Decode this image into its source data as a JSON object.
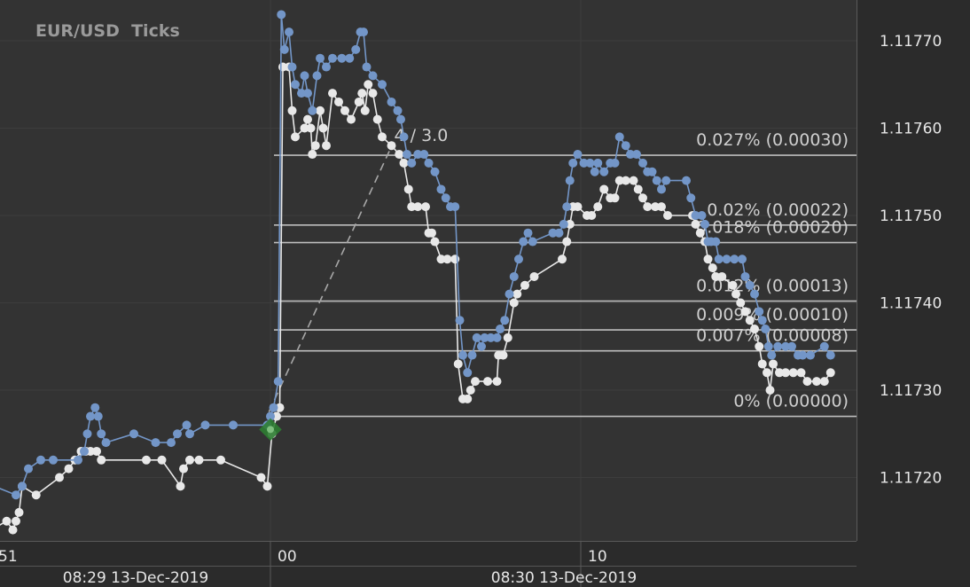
{
  "chart_data": {
    "type": "line",
    "title": "EUR/USD  Ticks",
    "y_ticks": [
      {
        "value": 1.1177,
        "label": "1.11770"
      },
      {
        "value": 1.1176,
        "label": "1.11760"
      },
      {
        "value": 1.1175,
        "label": "1.11750"
      },
      {
        "value": 1.1174,
        "label": "1.11740"
      },
      {
        "value": 1.1173,
        "label": "1.11730"
      },
      {
        "value": 1.1172,
        "label": "1.11720"
      }
    ],
    "x_ticks": [
      {
        "t": 51,
        "label": "51"
      },
      {
        "t": 60,
        "label": "00"
      },
      {
        "t": 70,
        "label": "10"
      }
    ],
    "date_labels": [
      {
        "label": "08:29 13-Dec-2019"
      },
      {
        "label": "08:30 13-Dec-2019"
      }
    ],
    "fib_levels": [
      {
        "value": 1.117569,
        "label": "0.027% (0.00030)"
      },
      {
        "value": 1.117489,
        "label": "0.02% (0.00022)"
      },
      {
        "value": 1.117469,
        "label": "0.018% (0.00020)"
      },
      {
        "value": 1.117402,
        "label": "0.012% (0.00013)"
      },
      {
        "value": 1.117369,
        "label": "0.009% (0.00010)"
      },
      {
        "value": 1.117345,
        "label": "0.007% (0.00008)"
      },
      {
        "value": 1.11727,
        "label": "0% (0.00000)"
      }
    ],
    "trend_label": "4 / 3.0",
    "trend_line": {
      "start": [
        59.95,
        1.117275
      ],
      "end": [
        63.9,
        1.117579
      ]
    },
    "marker": {
      "t": 60.0,
      "value": 1.117255
    },
    "colors": {
      "ask": "#7396c8",
      "bid": "#e8e8e8",
      "background": "#333333",
      "fib": "#bebebe",
      "marker": "#2e7d32"
    },
    "series": [
      {
        "points": [
          [
            50.5,
            1.11719
          ],
          [
            51.1,
            1.11719
          ],
          [
            51.8,
            1.11718
          ],
          [
            52.0,
            1.11719
          ],
          [
            52.2,
            1.11721
          ],
          [
            52.6,
            1.11722
          ],
          [
            53.0,
            1.11722
          ],
          [
            53.8,
            1.11722
          ],
          [
            54.0,
            1.11723
          ],
          [
            54.1,
            1.11725
          ],
          [
            54.2,
            1.11727
          ],
          [
            54.35,
            1.11728
          ],
          [
            54.45,
            1.11727
          ],
          [
            54.55,
            1.11725
          ],
          [
            54.7,
            1.11724
          ],
          [
            55.6,
            1.11725
          ],
          [
            56.3,
            1.11724
          ],
          [
            56.8,
            1.11724
          ],
          [
            57.0,
            1.11725
          ],
          [
            57.3,
            1.11726
          ],
          [
            57.4,
            1.11725
          ],
          [
            57.9,
            1.11726
          ],
          [
            58.8,
            1.11726
          ],
          [
            59.9,
            1.11726
          ],
          [
            60.0,
            1.11727
          ],
          [
            60.1,
            1.11728
          ],
          [
            60.25,
            1.11731
          ],
          [
            60.35,
            1.11773
          ],
          [
            60.45,
            1.11769
          ],
          [
            60.6,
            1.11771
          ],
          [
            60.7,
            1.11767
          ],
          [
            60.8,
            1.11765
          ],
          [
            61.0,
            1.11764
          ],
          [
            61.1,
            1.11766
          ],
          [
            61.2,
            1.11764
          ],
          [
            61.35,
            1.11762
          ],
          [
            61.5,
            1.11766
          ],
          [
            61.6,
            1.11768
          ],
          [
            61.8,
            1.11767
          ],
          [
            62.0,
            1.11768
          ],
          [
            62.3,
            1.11768
          ],
          [
            62.55,
            1.11768
          ],
          [
            62.75,
            1.11769
          ],
          [
            62.9,
            1.11771
          ],
          [
            63.0,
            1.11771
          ],
          [
            63.1,
            1.11767
          ],
          [
            63.3,
            1.11766
          ],
          [
            63.6,
            1.11765
          ],
          [
            63.9,
            1.11763
          ],
          [
            64.1,
            1.11762
          ],
          [
            64.2,
            1.11761
          ],
          [
            64.3,
            1.11759
          ],
          [
            64.4,
            1.11757
          ],
          [
            64.55,
            1.11756
          ],
          [
            64.75,
            1.11757
          ],
          [
            64.95,
            1.11757
          ],
          [
            65.1,
            1.11756
          ],
          [
            65.3,
            1.11755
          ],
          [
            65.5,
            1.11753
          ],
          [
            65.65,
            1.11752
          ],
          [
            65.8,
            1.11751
          ],
          [
            65.95,
            1.11751
          ],
          [
            66.1,
            1.11738
          ],
          [
            66.2,
            1.11734
          ],
          [
            66.35,
            1.11732
          ],
          [
            66.5,
            1.11734
          ],
          [
            66.65,
            1.11736
          ],
          [
            66.8,
            1.11735
          ],
          [
            66.9,
            1.11736
          ],
          [
            67.1,
            1.11736
          ],
          [
            67.3,
            1.11736
          ],
          [
            67.4,
            1.11737
          ],
          [
            67.55,
            1.11738
          ],
          [
            67.7,
            1.11741
          ],
          [
            67.85,
            1.11743
          ],
          [
            68.0,
            1.11745
          ],
          [
            68.15,
            1.11747
          ],
          [
            68.3,
            1.11748
          ],
          [
            68.45,
            1.11747
          ],
          [
            69.1,
            1.11748
          ],
          [
            69.3,
            1.11748
          ],
          [
            69.45,
            1.11749
          ],
          [
            69.55,
            1.11751
          ],
          [
            69.65,
            1.11754
          ],
          [
            69.75,
            1.11756
          ],
          [
            69.9,
            1.11757
          ],
          [
            70.1,
            1.11756
          ],
          [
            70.3,
            1.11756
          ],
          [
            70.45,
            1.11755
          ],
          [
            70.55,
            1.11756
          ],
          [
            70.75,
            1.11755
          ],
          [
            70.95,
            1.11756
          ],
          [
            71.1,
            1.11756
          ],
          [
            71.25,
            1.11759
          ],
          [
            71.45,
            1.11758
          ],
          [
            71.6,
            1.11757
          ],
          [
            71.8,
            1.11757
          ],
          [
            72.0,
            1.11756
          ],
          [
            72.15,
            1.11755
          ],
          [
            72.3,
            1.11755
          ],
          [
            72.45,
            1.11754
          ],
          [
            72.6,
            1.11753
          ],
          [
            72.75,
            1.11754
          ],
          [
            73.4,
            1.11754
          ],
          [
            73.55,
            1.11752
          ],
          [
            73.7,
            1.1175
          ],
          [
            73.9,
            1.1175
          ],
          [
            74.0,
            1.11749
          ],
          [
            74.1,
            1.11747
          ],
          [
            74.2,
            1.11747
          ],
          [
            74.35,
            1.11747
          ],
          [
            74.45,
            1.11745
          ],
          [
            74.7,
            1.11745
          ],
          [
            74.95,
            1.11745
          ],
          [
            75.2,
            1.11745
          ],
          [
            75.3,
            1.11743
          ],
          [
            75.45,
            1.11742
          ],
          [
            75.6,
            1.11741
          ],
          [
            75.75,
            1.11739
          ],
          [
            75.85,
            1.11738
          ],
          [
            75.95,
            1.11737
          ],
          [
            76.05,
            1.11735
          ],
          [
            76.15,
            1.11734
          ],
          [
            76.35,
            1.11735
          ],
          [
            76.6,
            1.11735
          ],
          [
            76.8,
            1.11735
          ],
          [
            77.0,
            1.11734
          ],
          [
            77.15,
            1.11734
          ],
          [
            77.4,
            1.11734
          ],
          [
            77.85,
            1.11735
          ],
          [
            78.05,
            1.11734
          ]
        ]
      },
      {
        "points": [
          [
            50.5,
            1.11715
          ],
          [
            51.0,
            1.11714
          ],
          [
            51.5,
            1.11715
          ],
          [
            51.7,
            1.11714
          ],
          [
            51.8,
            1.11715
          ],
          [
            51.9,
            1.11716
          ],
          [
            52.0,
            1.11719
          ],
          [
            52.45,
            1.11718
          ],
          [
            53.2,
            1.1172
          ],
          [
            53.5,
            1.11721
          ],
          [
            53.7,
            1.11722
          ],
          [
            53.9,
            1.11723
          ],
          [
            54.05,
            1.11723
          ],
          [
            54.2,
            1.11723
          ],
          [
            54.4,
            1.11723
          ],
          [
            54.55,
            1.11722
          ],
          [
            56.0,
            1.11722
          ],
          [
            56.5,
            1.11722
          ],
          [
            57.1,
            1.11719
          ],
          [
            57.2,
            1.11721
          ],
          [
            57.4,
            1.11722
          ],
          [
            57.7,
            1.11722
          ],
          [
            58.4,
            1.11722
          ],
          [
            59.7,
            1.1172
          ],
          [
            59.9,
            1.11719
          ],
          [
            60.05,
            1.11725
          ],
          [
            60.2,
            1.11727
          ],
          [
            60.3,
            1.11728
          ],
          [
            60.4,
            1.11767
          ],
          [
            60.6,
            1.11767
          ],
          [
            60.7,
            1.11762
          ],
          [
            60.8,
            1.11759
          ],
          [
            61.1,
            1.1176
          ],
          [
            61.2,
            1.11761
          ],
          [
            61.3,
            1.1176
          ],
          [
            61.35,
            1.11757
          ],
          [
            61.45,
            1.11758
          ],
          [
            61.6,
            1.11762
          ],
          [
            61.7,
            1.1176
          ],
          [
            61.8,
            1.11758
          ],
          [
            62.0,
            1.11764
          ],
          [
            62.2,
            1.11763
          ],
          [
            62.4,
            1.11762
          ],
          [
            62.6,
            1.11761
          ],
          [
            62.85,
            1.11763
          ],
          [
            62.95,
            1.11764
          ],
          [
            63.05,
            1.11762
          ],
          [
            63.15,
            1.11765
          ],
          [
            63.3,
            1.11764
          ],
          [
            63.45,
            1.11761
          ],
          [
            63.6,
            1.11759
          ],
          [
            63.9,
            1.11758
          ],
          [
            64.15,
            1.11757
          ],
          [
            64.3,
            1.11756
          ],
          [
            64.45,
            1.11753
          ],
          [
            64.55,
            1.11751
          ],
          [
            64.75,
            1.11751
          ],
          [
            65.0,
            1.11751
          ],
          [
            65.1,
            1.11748
          ],
          [
            65.2,
            1.11748
          ],
          [
            65.3,
            1.11747
          ],
          [
            65.5,
            1.11745
          ],
          [
            65.7,
            1.11745
          ],
          [
            65.95,
            1.11745
          ],
          [
            66.05,
            1.11733
          ],
          [
            66.2,
            1.11729
          ],
          [
            66.35,
            1.11729
          ],
          [
            66.45,
            1.1173
          ],
          [
            66.6,
            1.11731
          ],
          [
            67.0,
            1.11731
          ],
          [
            67.3,
            1.11731
          ],
          [
            67.35,
            1.11734
          ],
          [
            67.5,
            1.11734
          ],
          [
            67.65,
            1.11736
          ],
          [
            67.85,
            1.1174
          ],
          [
            67.95,
            1.11741
          ],
          [
            68.2,
            1.11742
          ],
          [
            68.5,
            1.11743
          ],
          [
            69.4,
            1.11745
          ],
          [
            69.55,
            1.11747
          ],
          [
            69.65,
            1.11749
          ],
          [
            69.75,
            1.11751
          ],
          [
            69.9,
            1.11751
          ],
          [
            70.2,
            1.1175
          ],
          [
            70.35,
            1.1175
          ],
          [
            70.55,
            1.11751
          ],
          [
            70.75,
            1.11753
          ],
          [
            70.95,
            1.11752
          ],
          [
            71.1,
            1.11752
          ],
          [
            71.25,
            1.11754
          ],
          [
            71.45,
            1.11754
          ],
          [
            71.7,
            1.11754
          ],
          [
            71.85,
            1.11753
          ],
          [
            72.0,
            1.11752
          ],
          [
            72.15,
            1.11751
          ],
          [
            72.4,
            1.11751
          ],
          [
            72.6,
            1.11751
          ],
          [
            72.8,
            1.1175
          ],
          [
            73.6,
            1.1175
          ],
          [
            73.7,
            1.11749
          ],
          [
            73.85,
            1.11748
          ],
          [
            74.0,
            1.11747
          ],
          [
            74.1,
            1.11745
          ],
          [
            74.25,
            1.11744
          ],
          [
            74.35,
            1.11743
          ],
          [
            74.55,
            1.11743
          ],
          [
            74.9,
            1.11742
          ],
          [
            75.0,
            1.11741
          ],
          [
            75.15,
            1.1174
          ],
          [
            75.3,
            1.11739
          ],
          [
            75.45,
            1.11738
          ],
          [
            75.6,
            1.11737
          ],
          [
            75.75,
            1.11735
          ],
          [
            75.85,
            1.11733
          ],
          [
            76.0,
            1.11732
          ],
          [
            76.1,
            1.1173
          ],
          [
            76.2,
            1.11733
          ],
          [
            76.4,
            1.11732
          ],
          [
            76.6,
            1.11732
          ],
          [
            76.85,
            1.11732
          ],
          [
            77.1,
            1.11732
          ],
          [
            77.3,
            1.11731
          ],
          [
            77.6,
            1.11731
          ],
          [
            77.85,
            1.11731
          ],
          [
            78.05,
            1.11732
          ]
        ]
      }
    ]
  }
}
